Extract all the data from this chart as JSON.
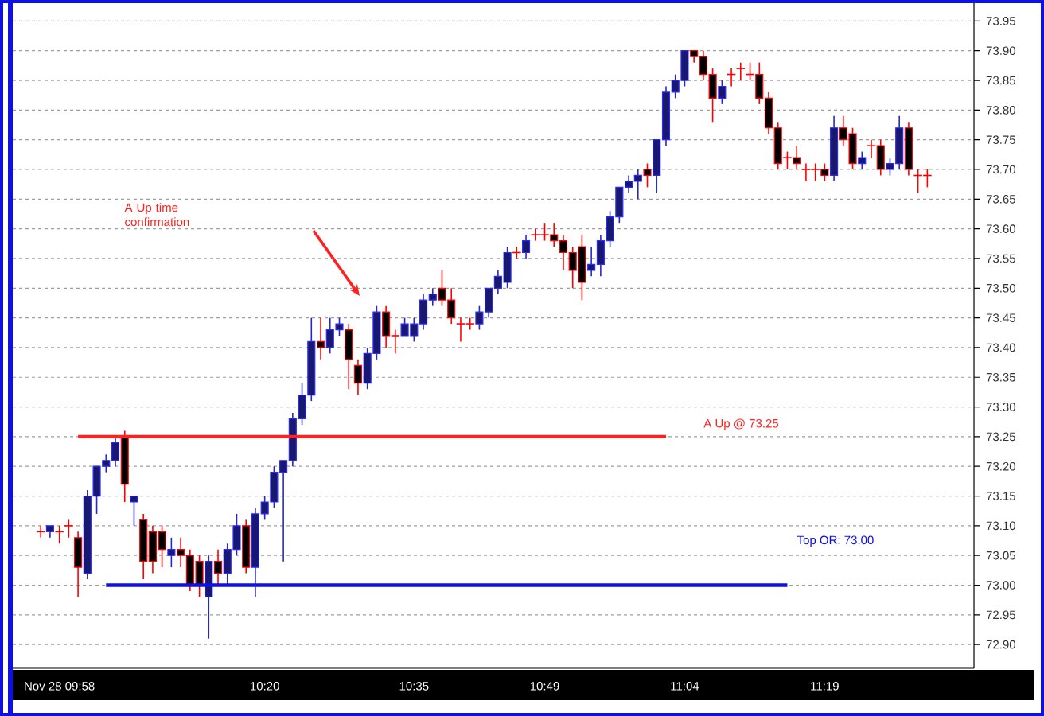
{
  "chart_data": {
    "type": "candlestick",
    "categories": [
      null,
      null,
      "Nov 28 09:58",
      null,
      null,
      null,
      null,
      null,
      null,
      null,
      null,
      null,
      null,
      null,
      null,
      null,
      null,
      null,
      null,
      null,
      null,
      null,
      null,
      null,
      "10:20",
      null,
      null,
      null,
      null,
      null,
      null,
      null,
      null,
      null,
      null,
      null,
      null,
      null,
      null,
      null,
      "10:35",
      null,
      null,
      null,
      null,
      null,
      null,
      null,
      null,
      null,
      null,
      null,
      null,
      null,
      "10:49",
      null,
      null,
      null,
      null,
      null,
      null,
      null,
      null,
      null,
      null,
      null,
      null,
      null,
      null,
      "11:04",
      null,
      null,
      null,
      null,
      null,
      null,
      null,
      null,
      null,
      null,
      null,
      null,
      null,
      null,
      "11:19",
      null,
      null,
      null,
      null,
      null,
      null,
      null,
      null,
      null,
      null,
      null
    ],
    "ohlc": [
      [
        73.09,
        73.1,
        73.08,
        73.09
      ],
      [
        73.09,
        73.1,
        73.08,
        73.1
      ],
      [
        73.09,
        73.1,
        73.07,
        73.09
      ],
      [
        73.1,
        73.11,
        73.08,
        73.1
      ],
      [
        73.08,
        73.09,
        72.98,
        73.03
      ],
      [
        73.02,
        73.16,
        73.01,
        73.15
      ],
      [
        73.15,
        73.2,
        73.12,
        73.2
      ],
      [
        73.2,
        73.22,
        73.19,
        73.21
      ],
      [
        73.21,
        73.25,
        73.2,
        73.24
      ],
      [
        73.25,
        73.26,
        73.14,
        73.17
      ],
      [
        73.14,
        73.15,
        73.1,
        73.15
      ],
      [
        73.11,
        73.12,
        73.01,
        73.04
      ],
      [
        73.09,
        73.1,
        73.02,
        73.04
      ],
      [
        73.09,
        73.1,
        73.03,
        73.06
      ],
      [
        73.05,
        73.08,
        73.03,
        73.06
      ],
      [
        73.06,
        73.08,
        73.03,
        73.05
      ],
      [
        73.05,
        73.06,
        72.99,
        73.0
      ],
      [
        73.04,
        73.05,
        72.98,
        73.0
      ],
      [
        72.98,
        73.05,
        72.91,
        73.04
      ],
      [
        73.04,
        73.06,
        73.0,
        73.02
      ],
      [
        73.02,
        73.07,
        73.0,
        73.06
      ],
      [
        73.06,
        73.12,
        73.05,
        73.1
      ],
      [
        73.1,
        73.11,
        73.02,
        73.03
      ],
      [
        73.03,
        73.13,
        72.98,
        73.12
      ],
      [
        73.12,
        73.15,
        73.11,
        73.14
      ],
      [
        73.14,
        73.2,
        73.13,
        73.19
      ],
      [
        73.19,
        73.21,
        73.04,
        73.21
      ],
      [
        73.21,
        73.29,
        73.2,
        73.28
      ],
      [
        73.28,
        73.34,
        73.27,
        73.32
      ],
      [
        73.32,
        73.45,
        73.31,
        73.41
      ],
      [
        73.41,
        73.45,
        73.38,
        73.4
      ],
      [
        73.4,
        73.45,
        73.39,
        73.43
      ],
      [
        73.43,
        73.45,
        73.42,
        73.44
      ],
      [
        73.43,
        73.44,
        73.33,
        73.38
      ],
      [
        73.37,
        73.38,
        73.32,
        73.34
      ],
      [
        73.34,
        73.4,
        73.33,
        73.39
      ],
      [
        73.39,
        73.47,
        73.38,
        73.46
      ],
      [
        73.46,
        73.47,
        73.4,
        73.42
      ],
      [
        73.42,
        73.43,
        73.39,
        73.42
      ],
      [
        73.42,
        73.45,
        73.42,
        73.44
      ],
      [
        73.42,
        73.45,
        73.41,
        73.44
      ],
      [
        73.44,
        73.49,
        73.43,
        73.48
      ],
      [
        73.48,
        73.5,
        73.47,
        73.49
      ],
      [
        73.5,
        73.53,
        73.47,
        73.48
      ],
      [
        73.48,
        73.5,
        73.44,
        73.45
      ],
      [
        73.44,
        73.45,
        73.41,
        73.44
      ],
      [
        73.44,
        73.45,
        73.43,
        73.44
      ],
      [
        73.44,
        73.47,
        73.43,
        73.46
      ],
      [
        73.46,
        73.5,
        73.45,
        73.5
      ],
      [
        73.5,
        73.53,
        73.49,
        73.52
      ],
      [
        73.51,
        73.57,
        73.5,
        73.56
      ],
      [
        73.56,
        73.57,
        73.55,
        73.56
      ],
      [
        73.56,
        73.59,
        73.55,
        73.58
      ],
      [
        73.59,
        73.6,
        73.58,
        73.59
      ],
      [
        73.59,
        73.61,
        73.58,
        73.59
      ],
      [
        73.59,
        73.61,
        73.57,
        73.58
      ],
      [
        73.58,
        73.59,
        73.53,
        73.56
      ],
      [
        73.56,
        73.57,
        73.5,
        73.53
      ],
      [
        73.57,
        73.59,
        73.48,
        73.51
      ],
      [
        73.53,
        73.57,
        73.52,
        73.54
      ],
      [
        73.54,
        73.59,
        73.52,
        73.58
      ],
      [
        73.58,
        73.63,
        73.57,
        73.62
      ],
      [
        73.62,
        73.67,
        73.61,
        73.67
      ],
      [
        73.67,
        73.69,
        73.66,
        73.68
      ],
      [
        73.68,
        73.7,
        73.65,
        73.69
      ],
      [
        73.7,
        73.71,
        73.67,
        73.69
      ],
      [
        73.69,
        73.75,
        73.66,
        73.75
      ],
      [
        73.75,
        73.84,
        73.74,
        73.83
      ],
      [
        73.83,
        73.86,
        73.82,
        73.85
      ],
      [
        73.85,
        73.9,
        73.84,
        73.9
      ],
      [
        73.9,
        73.9,
        73.88,
        73.89
      ],
      [
        73.89,
        73.9,
        73.85,
        73.86
      ],
      [
        73.86,
        73.87,
        73.78,
        73.82
      ],
      [
        73.82,
        73.85,
        73.81,
        73.84
      ],
      [
        73.86,
        73.87,
        73.84,
        73.86
      ],
      [
        73.87,
        73.88,
        73.85,
        73.87
      ],
      [
        73.86,
        73.88,
        73.85,
        73.86
      ],
      [
        73.86,
        73.88,
        73.81,
        73.82
      ],
      [
        73.82,
        73.83,
        73.76,
        73.77
      ],
      [
        73.77,
        73.78,
        73.7,
        73.71
      ],
      [
        73.72,
        73.73,
        73.7,
        73.72
      ],
      [
        73.72,
        73.74,
        73.7,
        73.71
      ],
      [
        73.7,
        73.71,
        73.68,
        73.7
      ],
      [
        73.7,
        73.71,
        73.68,
        73.7
      ],
      [
        73.7,
        73.71,
        73.68,
        73.69
      ],
      [
        73.69,
        73.79,
        73.68,
        73.77
      ],
      [
        73.77,
        73.79,
        73.74,
        73.75
      ],
      [
        73.76,
        73.77,
        73.7,
        73.71
      ],
      [
        73.71,
        73.73,
        73.7,
        73.72
      ],
      [
        73.74,
        73.75,
        73.72,
        73.74
      ],
      [
        73.74,
        73.75,
        73.69,
        73.7
      ],
      [
        73.7,
        73.72,
        73.69,
        73.71
      ],
      [
        73.71,
        73.79,
        73.7,
        73.77
      ],
      [
        73.77,
        73.78,
        73.69,
        73.7
      ],
      [
        73.69,
        73.7,
        73.66,
        73.69
      ],
      [
        73.69,
        73.7,
        73.67,
        73.69
      ]
    ],
    "ylim": [
      72.86,
      73.98
    ],
    "yticks": [
      {
        "value": 72.9,
        "label": "72.90"
      },
      72.95,
      {
        "value": 73,
        "label": "73.00"
      },
      73.05,
      {
        "value": 73.1,
        "label": "73.10"
      },
      73.15,
      {
        "value": 73.2,
        "label": "73.20"
      },
      73.25,
      {
        "value": 73.3,
        "label": "73.30"
      },
      73.35,
      {
        "value": 73.4,
        "label": "73.40"
      },
      73.45,
      {
        "value": 73.5,
        "label": "73.50"
      },
      73.55,
      {
        "value": 73.6,
        "label": "73.60"
      },
      73.65,
      {
        "value": 73.7,
        "label": "73.70"
      },
      73.75,
      {
        "value": 73.8,
        "label": "73.80"
      },
      73.85,
      {
        "value": 73.9,
        "label": "73.90"
      },
      73.95
    ],
    "grid": "y",
    "ref_lines": [
      {
        "axis": "y",
        "value": 73.25,
        "label": "A Up @ 73.25",
        "color": "#ff2020"
      },
      {
        "axis": "y",
        "value": 73.0,
        "label": "Top OR: 73.00",
        "color": "#1010e0"
      }
    ],
    "annotations": [
      "A Up time confirmation"
    ]
  }
}
